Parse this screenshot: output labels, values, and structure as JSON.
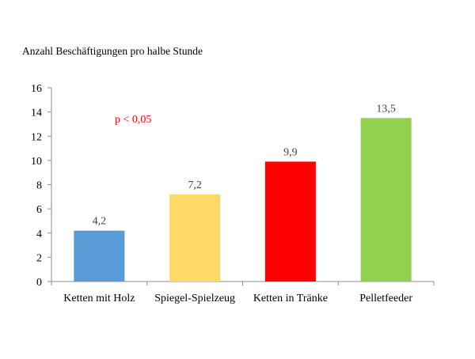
{
  "chart_data": {
    "type": "bar",
    "title": "Anzahl Beschäftigungen pro halbe Stunde",
    "xlabel": "",
    "ylabel": "",
    "ylim": [
      0,
      16
    ],
    "yticks": [
      0,
      2,
      4,
      6,
      8,
      10,
      12,
      14,
      16
    ],
    "ytick_labels": [
      "0",
      "2",
      "4",
      "6",
      "8",
      "10",
      "12",
      "14",
      "16"
    ],
    "grid": false,
    "legend": "none",
    "categories": [
      "Ketten mit Holz",
      "Spiegel-Spielzeug",
      "Ketten in Tränke",
      "Pelletfeeder"
    ],
    "values": [
      4.2,
      7.2,
      9.9,
      13.5
    ],
    "data_labels": [
      "4,2",
      "7,2",
      "9,9",
      "13,5"
    ],
    "bar_colors": [
      "#5b9bd5",
      "#ffd966",
      "#ff0000",
      "#92d050"
    ],
    "annotation": {
      "text": "p < 0,05",
      "color": "#ff0000"
    }
  }
}
